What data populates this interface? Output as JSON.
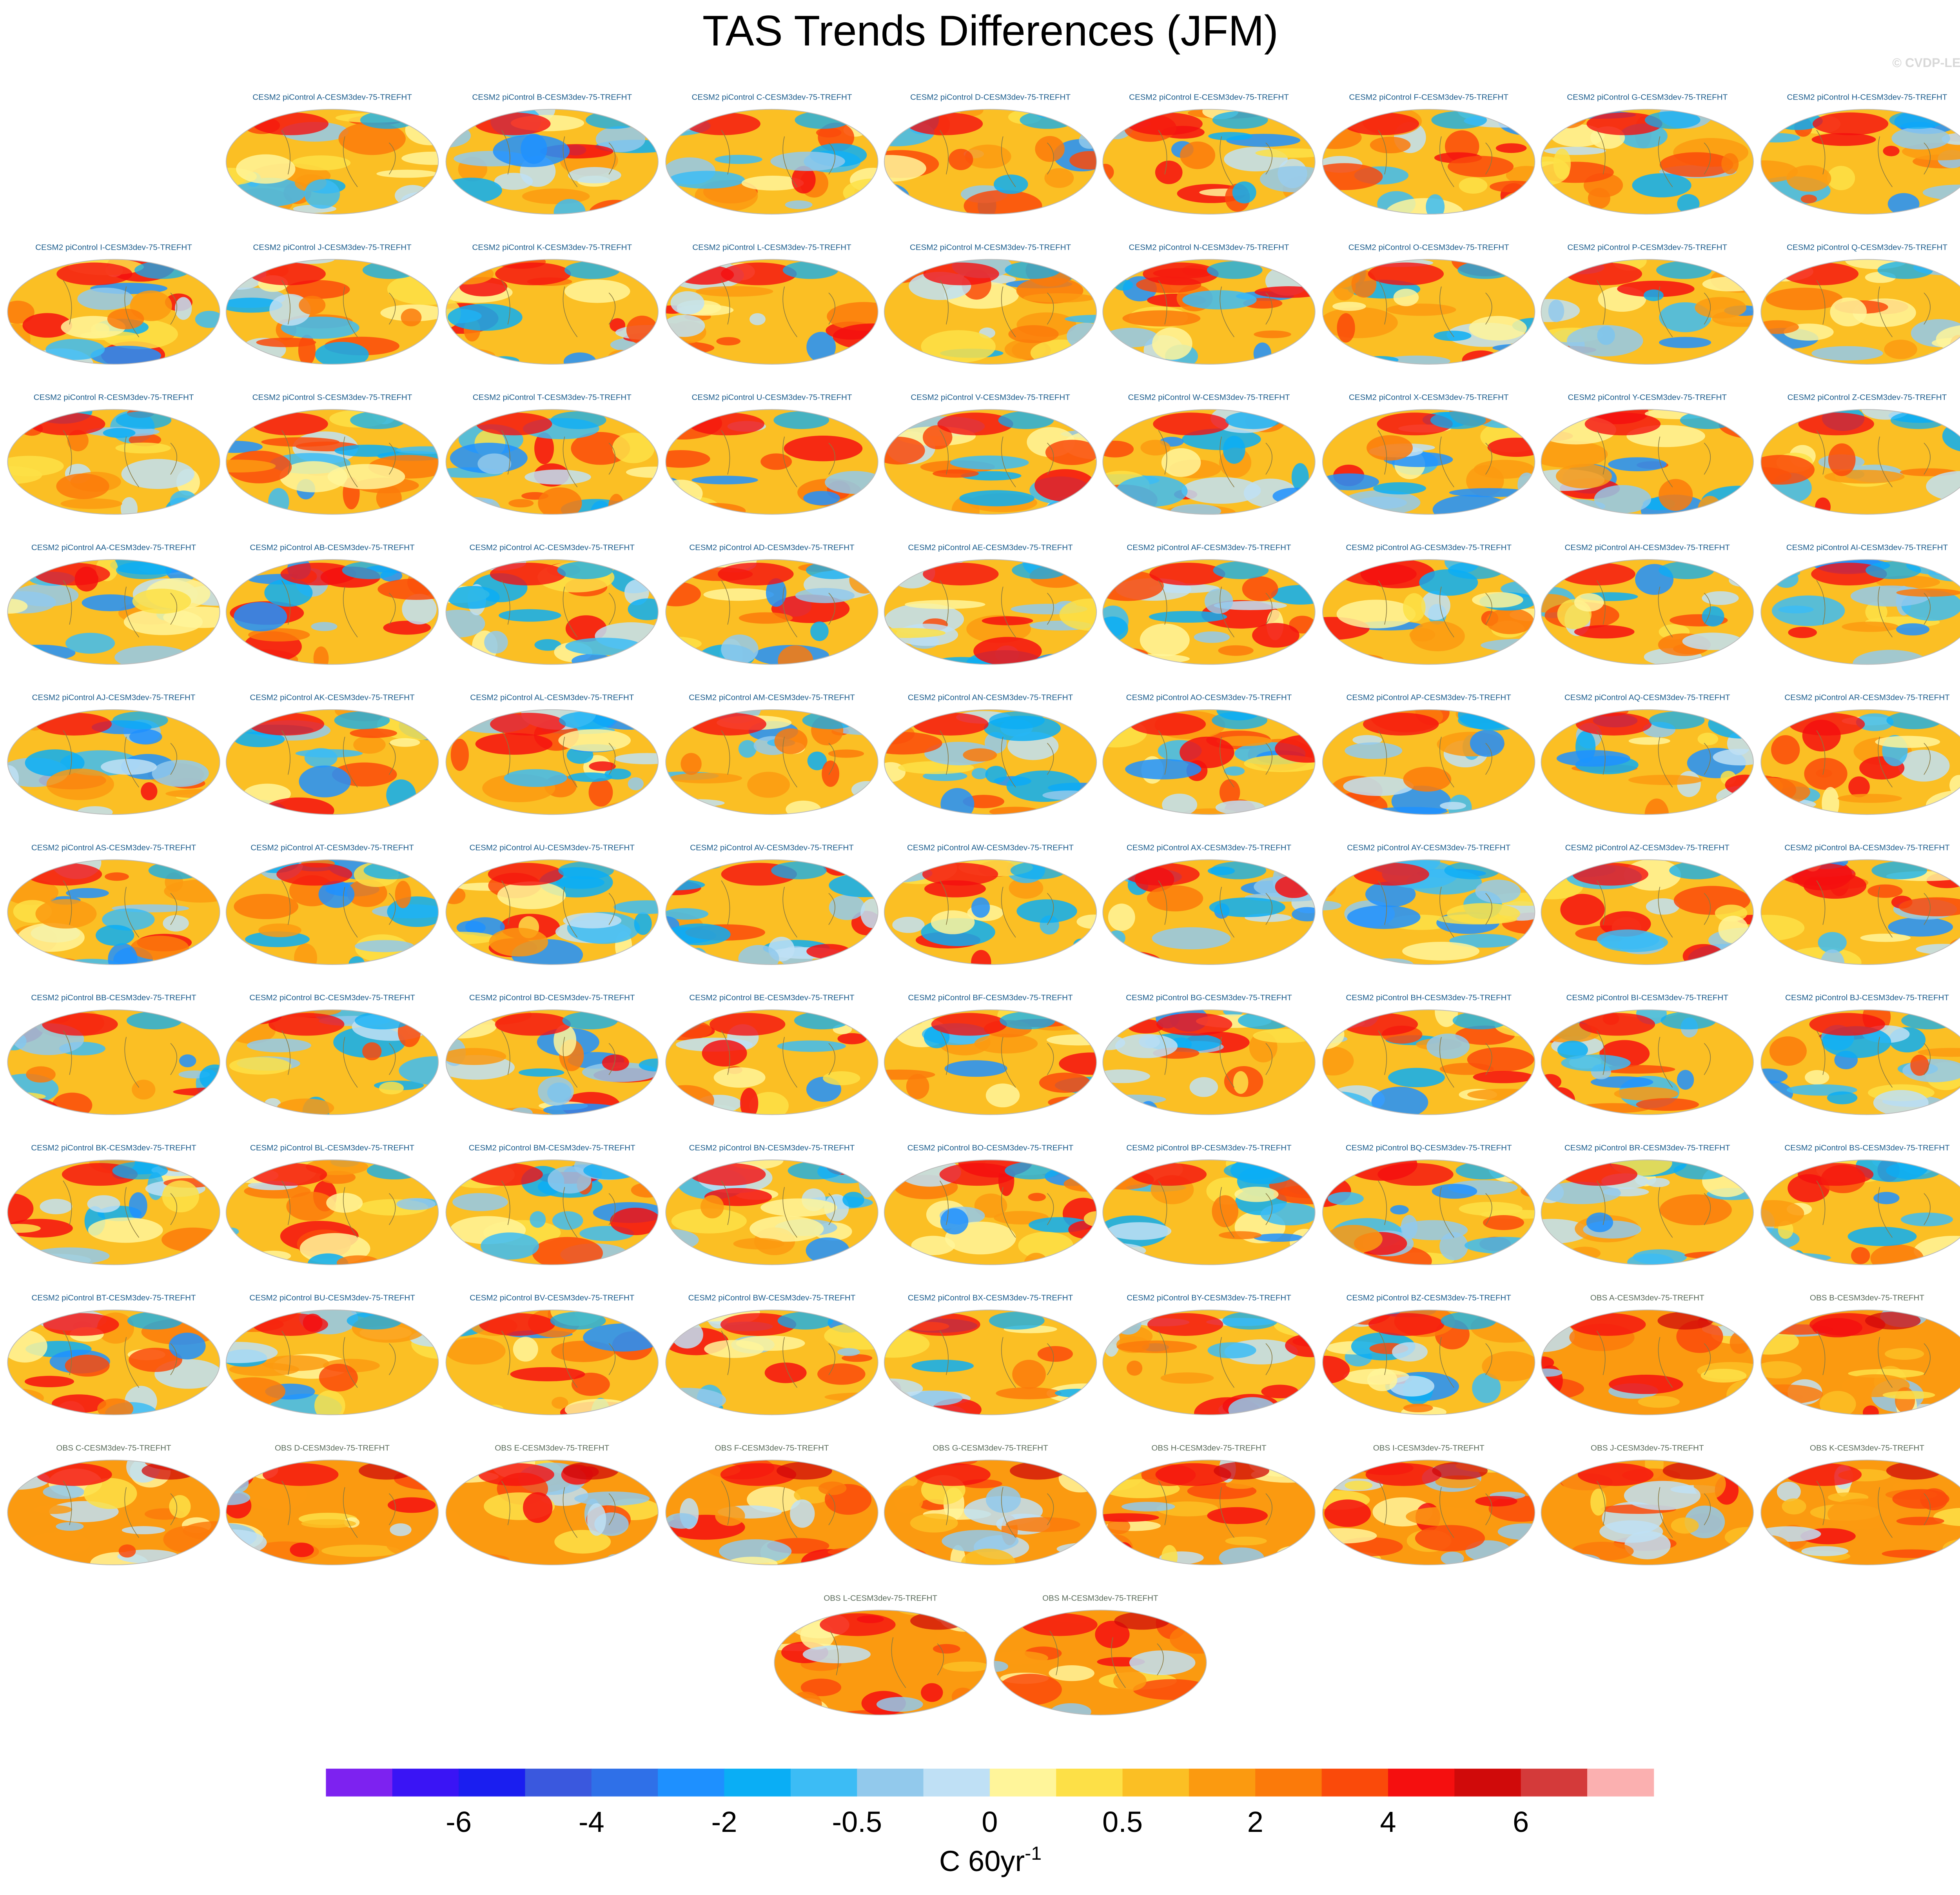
{
  "title": "TAS Trends Differences (JFM)",
  "copyright": "© CVDP-LE",
  "model_panels": [
    "CESM2 piControl A-CESM3dev-75-TREFHT",
    "CESM2 piControl B-CESM3dev-75-TREFHT",
    "CESM2 piControl C-CESM3dev-75-TREFHT",
    "CESM2 piControl D-CESM3dev-75-TREFHT",
    "CESM2 piControl E-CESM3dev-75-TREFHT",
    "CESM2 piControl F-CESM3dev-75-TREFHT",
    "CESM2 piControl G-CESM3dev-75-TREFHT",
    "CESM2 piControl H-CESM3dev-75-TREFHT",
    "CESM2 piControl I-CESM3dev-75-TREFHT",
    "CESM2 piControl J-CESM3dev-75-TREFHT",
    "CESM2 piControl K-CESM3dev-75-TREFHT",
    "CESM2 piControl L-CESM3dev-75-TREFHT",
    "CESM2 piControl M-CESM3dev-75-TREFHT",
    "CESM2 piControl N-CESM3dev-75-TREFHT",
    "CESM2 piControl O-CESM3dev-75-TREFHT",
    "CESM2 piControl P-CESM3dev-75-TREFHT",
    "CESM2 piControl Q-CESM3dev-75-TREFHT",
    "CESM2 piControl R-CESM3dev-75-TREFHT",
    "CESM2 piControl S-CESM3dev-75-TREFHT",
    "CESM2 piControl T-CESM3dev-75-TREFHT",
    "CESM2 piControl U-CESM3dev-75-TREFHT",
    "CESM2 piControl V-CESM3dev-75-TREFHT",
    "CESM2 piControl W-CESM3dev-75-TREFHT",
    "CESM2 piControl X-CESM3dev-75-TREFHT",
    "CESM2 piControl Y-CESM3dev-75-TREFHT",
    "CESM2 piControl Z-CESM3dev-75-TREFHT",
    "CESM2 piControl AA-CESM3dev-75-TREFHT",
    "CESM2 piControl AB-CESM3dev-75-TREFHT",
    "CESM2 piControl AC-CESM3dev-75-TREFHT",
    "CESM2 piControl AD-CESM3dev-75-TREFHT",
    "CESM2 piControl AE-CESM3dev-75-TREFHT",
    "CESM2 piControl AF-CESM3dev-75-TREFHT",
    "CESM2 piControl AG-CESM3dev-75-TREFHT",
    "CESM2 piControl AH-CESM3dev-75-TREFHT",
    "CESM2 piControl AI-CESM3dev-75-TREFHT",
    "CESM2 piControl AJ-CESM3dev-75-TREFHT",
    "CESM2 piControl AK-CESM3dev-75-TREFHT",
    "CESM2 piControl AL-CESM3dev-75-TREFHT",
    "CESM2 piControl AM-CESM3dev-75-TREFHT",
    "CESM2 piControl AN-CESM3dev-75-TREFHT",
    "CESM2 piControl AO-CESM3dev-75-TREFHT",
    "CESM2 piControl AP-CESM3dev-75-TREFHT",
    "CESM2 piControl AQ-CESM3dev-75-TREFHT",
    "CESM2 piControl AR-CESM3dev-75-TREFHT",
    "CESM2 piControl AS-CESM3dev-75-TREFHT",
    "CESM2 piControl AT-CESM3dev-75-TREFHT",
    "CESM2 piControl AU-CESM3dev-75-TREFHT",
    "CESM2 piControl AV-CESM3dev-75-TREFHT",
    "CESM2 piControl AW-CESM3dev-75-TREFHT",
    "CESM2 piControl AX-CESM3dev-75-TREFHT",
    "CESM2 piControl AY-CESM3dev-75-TREFHT",
    "CESM2 piControl AZ-CESM3dev-75-TREFHT",
    "CESM2 piControl BA-CESM3dev-75-TREFHT",
    "CESM2 piControl BB-CESM3dev-75-TREFHT",
    "CESM2 piControl BC-CESM3dev-75-TREFHT",
    "CESM2 piControl BD-CESM3dev-75-TREFHT",
    "CESM2 piControl BE-CESM3dev-75-TREFHT",
    "CESM2 piControl BF-CESM3dev-75-TREFHT",
    "CESM2 piControl BG-CESM3dev-75-TREFHT",
    "CESM2 piControl BH-CESM3dev-75-TREFHT",
    "CESM2 piControl BI-CESM3dev-75-TREFHT",
    "CESM2 piControl BJ-CESM3dev-75-TREFHT",
    "CESM2 piControl BK-CESM3dev-75-TREFHT",
    "CESM2 piControl BL-CESM3dev-75-TREFHT",
    "CESM2 piControl BM-CESM3dev-75-TREFHT",
    "CESM2 piControl BN-CESM3dev-75-TREFHT",
    "CESM2 piControl BO-CESM3dev-75-TREFHT",
    "CESM2 piControl BP-CESM3dev-75-TREFHT",
    "CESM2 piControl BQ-CESM3dev-75-TREFHT",
    "CESM2 piControl BR-CESM3dev-75-TREFHT",
    "CESM2 piControl BS-CESM3dev-75-TREFHT",
    "CESM2 piControl BT-CESM3dev-75-TREFHT",
    "CESM2 piControl BU-CESM3dev-75-TREFHT",
    "CESM2 piControl BV-CESM3dev-75-TREFHT",
    "CESM2 piControl BW-CESM3dev-75-TREFHT",
    "CESM2 piControl BX-CESM3dev-75-TREFHT",
    "CESM2 piControl BY-CESM3dev-75-TREFHT",
    "CESM2 piControl BZ-CESM3dev-75-TREFHT"
  ],
  "obs_panels": [
    "OBS A-CESM3dev-75-TREFHT",
    "OBS B-CESM3dev-75-TREFHT",
    "OBS C-CESM3dev-75-TREFHT",
    "OBS D-CESM3dev-75-TREFHT",
    "OBS E-CESM3dev-75-TREFHT",
    "OBS F-CESM3dev-75-TREFHT",
    "OBS G-CESM3dev-75-TREFHT",
    "OBS H-CESM3dev-75-TREFHT",
    "OBS I-CESM3dev-75-TREFHT",
    "OBS J-CESM3dev-75-TREFHT",
    "OBS K-CESM3dev-75-TREFHT",
    "OBS L-CESM3dev-75-TREFHT",
    "OBS M-CESM3dev-75-TREFHT"
  ],
  "colorbar": {
    "colors": [
      "#7d22f0",
      "#3a14f5",
      "#1a1ef0",
      "#3a58de",
      "#2f70e8",
      "#1e90ff",
      "#0aaef5",
      "#3cbcf5",
      "#92c9ec",
      "#bfe0f5",
      "#fff59a",
      "#fde047",
      "#fbbf24",
      "#fb9a10",
      "#fb7a0a",
      "#fa4a0a",
      "#f50f0f",
      "#d00a0a",
      "#d43a3a",
      "#fbb0b0"
    ],
    "ticks": [
      -6,
      -4,
      -2,
      -0.5,
      0,
      0.5,
      2,
      4,
      6
    ],
    "units": "C 60yr",
    "units_exponent": "-1"
  }
}
